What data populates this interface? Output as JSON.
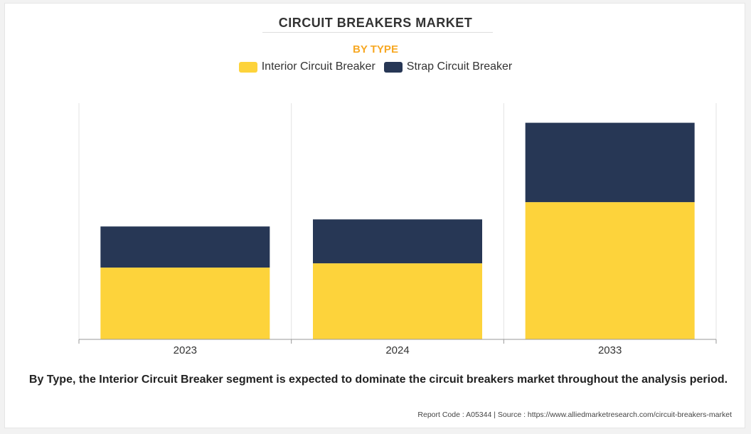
{
  "title": "CIRCUIT BREAKERS MARKET",
  "subtitle": "BY TYPE",
  "caption": "By Type, the Interior Circuit Breaker segment is expected to dominate the circuit breakers market throughout the analysis period.",
  "footer": {
    "report_code": "Report Code : A05344",
    "separator": "|",
    "source": "Source : https://www.alliedmarketresearch.com/circuit-breakers-market"
  },
  "colors": {
    "subtitle": "#f7a823",
    "interior": "#fdd33b",
    "strap": "#273755",
    "grid": "#e3e3e3",
    "axis": "#999999"
  },
  "chart_data": {
    "type": "bar",
    "stacked": true,
    "categories": [
      "2023",
      "2024",
      "2033"
    ],
    "series": [
      {
        "name": "Interior Circuit Breaker",
        "color": "#fdd33b",
        "values": [
          30.4,
          32.2,
          58.1
        ]
      },
      {
        "name": "Strap Circuit Breaker",
        "color": "#273755",
        "values": [
          17.4,
          18.6,
          33.6
        ]
      }
    ],
    "ylim": [
      0,
      100
    ],
    "y_axis_visible": false,
    "grid": "vertical separators between categories",
    "legend_position": "top-center",
    "xlabel": "",
    "ylabel": ""
  }
}
